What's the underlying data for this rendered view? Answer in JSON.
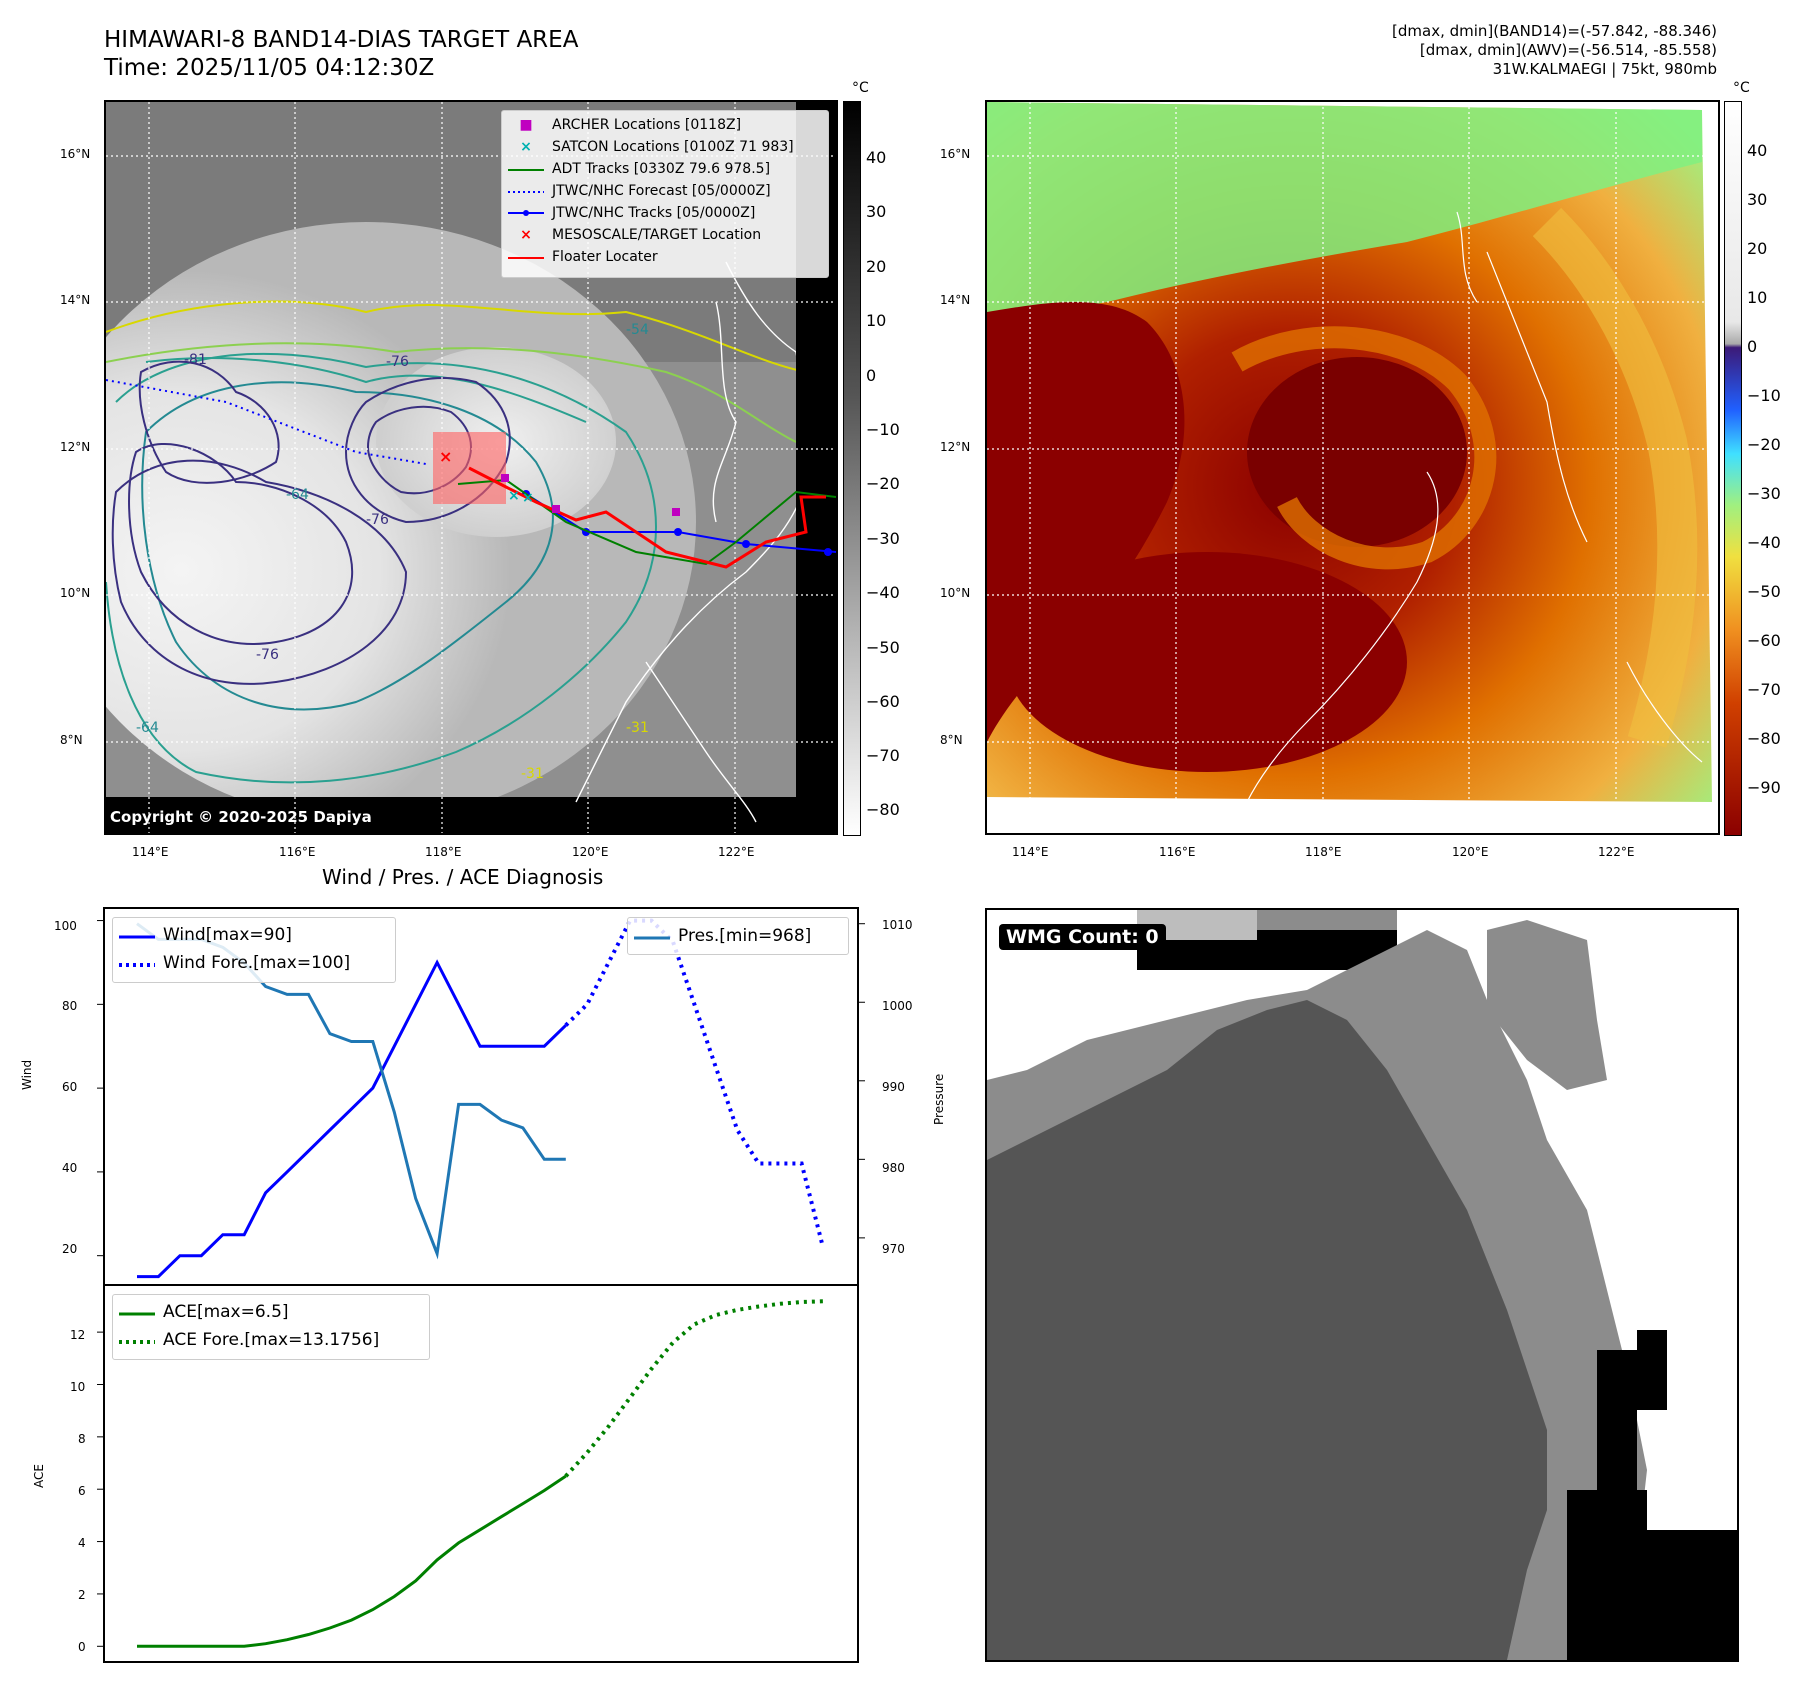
{
  "header": {
    "title_line1": "HIMAWARI-8 BAND14-DIAS TARGET AREA",
    "title_line2": "Time: 2025/11/05 04:12:30Z",
    "right_line1": "[dmax, dmin](BAND14)=(-57.842, -88.346)",
    "right_line2": "[dmax, dmin](AWV)=(-56.514, -85.558)",
    "right_line3": "31W.KALMAEGI | 75kt, 980mb"
  },
  "map_panel": {
    "x_ticks": [
      "114°E",
      "116°E",
      "118°E",
      "120°E",
      "122°E"
    ],
    "y_ticks": [
      "16°N",
      "14°N",
      "12°N",
      "10°N",
      "8°N"
    ],
    "copyright": "Copyright © 2020-2025 Dapiya",
    "contour_labels": [
      "-81",
      "-76",
      "-76",
      "-76",
      "-64",
      "-54",
      "-31",
      "-31",
      "-64"
    ],
    "legend": [
      {
        "label": "ARCHER Locations [0118Z]",
        "color": "#c000c0",
        "icon": "square-marker"
      },
      {
        "label": "SATCON Locations [0100Z 71 983]",
        "color": "#00b0b0",
        "icon": "x-marker"
      },
      {
        "label": "ADT Tracks [0330Z 79.6 978.5]",
        "color": "#008000",
        "icon": "line"
      },
      {
        "label": "JTWC/NHC Forecast [05/0000Z]",
        "color": "#0000ff",
        "icon": "dotted-line"
      },
      {
        "label": "JTWC/NHC Tracks [05/0000Z]",
        "color": "#0000ff",
        "icon": "line-dot"
      },
      {
        "label": "MESOSCALE/TARGET Location",
        "color": "#ff0000",
        "icon": "x-marker"
      },
      {
        "label": "Floater Locater",
        "color": "#ff0000",
        "icon": "line"
      }
    ],
    "colorbar": {
      "unit": "°C",
      "ticks": [
        "40",
        "30",
        "20",
        "10",
        "0",
        "−10",
        "−20",
        "−30",
        "−40",
        "−50",
        "−60",
        "−70",
        "−80"
      ]
    }
  },
  "awv_panel": {
    "x_ticks": [
      "114°E",
      "116°E",
      "118°E",
      "120°E",
      "122°E"
    ],
    "y_ticks": [
      "16°N",
      "14°N",
      "12°N",
      "10°N",
      "8°N"
    ],
    "colorbar": {
      "unit": "°C",
      "ticks": [
        "40",
        "30",
        "20",
        "10",
        "0",
        "−10",
        "−20",
        "−30",
        "−40",
        "−50",
        "−60",
        "−70",
        "−80",
        "−90"
      ]
    }
  },
  "diagnosis": {
    "title": "Wind / Pres. / ACE Diagnosis",
    "wind_ylabel": "Wind",
    "pres_ylabel": "Pressure",
    "ace_ylabel": "ACE",
    "legend_wind": "Wind[max=90]",
    "legend_wind_fore": "Wind Fore.[max=100]",
    "legend_pres": "Pres.[min=968]",
    "legend_ace": "ACE[max=6.5]",
    "legend_ace_fore": "ACE Fore.[max=13.1756]",
    "wind_ticks": [
      "100",
      "80",
      "60",
      "40",
      "20"
    ],
    "pres_ticks": [
      "1010",
      "1000",
      "990",
      "980",
      "970"
    ],
    "ace_ticks": [
      "12",
      "10",
      "8",
      "6",
      "4",
      "2",
      "0"
    ]
  },
  "wmg": {
    "badge": "WMG Count: 0"
  },
  "chart_data": [
    {
      "type": "line",
      "title": "Wind / Pres. / ACE Diagnosis",
      "ylabel": "Wind",
      "ylim": [
        13,
        103
      ],
      "x": [
        0,
        1,
        2,
        3,
        4,
        5,
        6,
        7,
        8,
        9,
        10,
        11,
        12,
        13,
        14,
        15,
        16,
        17,
        18,
        19,
        20,
        21,
        22,
        23,
        24,
        25,
        26,
        27,
        28,
        29,
        30,
        31,
        32
      ],
      "series": [
        {
          "name": "Wind[max=90]",
          "color": "#0000ff",
          "style": "solid",
          "x": [
            0,
            1,
            2,
            3,
            4,
            5,
            6,
            7,
            8,
            9,
            10,
            11,
            12,
            13,
            14,
            15,
            16,
            17,
            18,
            19,
            20
          ],
          "values": [
            15,
            15,
            20,
            20,
            25,
            25,
            35,
            40,
            45,
            50,
            55,
            60,
            70,
            80,
            90,
            80,
            70,
            70,
            70,
            70,
            75
          ]
        },
        {
          "name": "Wind Fore.[max=100]",
          "color": "#0000ff",
          "style": "dotted",
          "x": [
            20,
            21,
            22,
            23,
            24,
            25,
            26,
            27,
            28,
            29,
            30,
            31,
            32
          ],
          "values": [
            75,
            80,
            90,
            100,
            100,
            95,
            80,
            65,
            50,
            42,
            42,
            42,
            22
          ]
        }
      ]
    },
    {
      "type": "line",
      "ylabel": "Pressure",
      "ylim": [
        964,
        1012
      ],
      "series": [
        {
          "name": "Pres.[min=968]",
          "color": "#1f77b4",
          "style": "solid",
          "x": [
            0,
            1,
            2,
            3,
            4,
            5,
            6,
            7,
            8,
            9,
            10,
            11,
            12,
            13,
            14,
            15,
            16,
            17,
            18,
            19,
            20
          ],
          "values": [
            1010,
            1008,
            1008,
            1008,
            1007,
            1005,
            1002,
            1001,
            1001,
            996,
            995,
            995,
            986,
            975,
            968,
            987,
            987,
            985,
            984,
            980,
            980
          ]
        }
      ]
    },
    {
      "type": "line",
      "ylabel": "ACE",
      "ylim": [
        -0.6,
        13.8
      ],
      "series": [
        {
          "name": "ACE[max=6.5]",
          "color": "#008000",
          "style": "solid",
          "x": [
            0,
            1,
            2,
            3,
            4,
            5,
            6,
            7,
            8,
            9,
            10,
            11,
            12,
            13,
            14,
            15,
            16,
            17,
            18,
            19,
            20
          ],
          "values": [
            0,
            0,
            0,
            0,
            0,
            0,
            0.1,
            0.25,
            0.45,
            0.7,
            1.0,
            1.4,
            1.9,
            2.5,
            3.3,
            3.95,
            4.45,
            4.95,
            5.45,
            5.95,
            6.5
          ]
        },
        {
          "name": "ACE Fore.[max=13.1756]",
          "color": "#008000",
          "style": "dotted",
          "x": [
            20,
            21,
            22,
            23,
            24,
            25,
            26,
            27,
            28,
            29,
            30,
            31,
            32
          ],
          "values": [
            6.5,
            7.4,
            8.4,
            9.5,
            10.6,
            11.6,
            12.3,
            12.65,
            12.85,
            12.98,
            13.08,
            13.15,
            13.1756
          ]
        }
      ]
    }
  ]
}
